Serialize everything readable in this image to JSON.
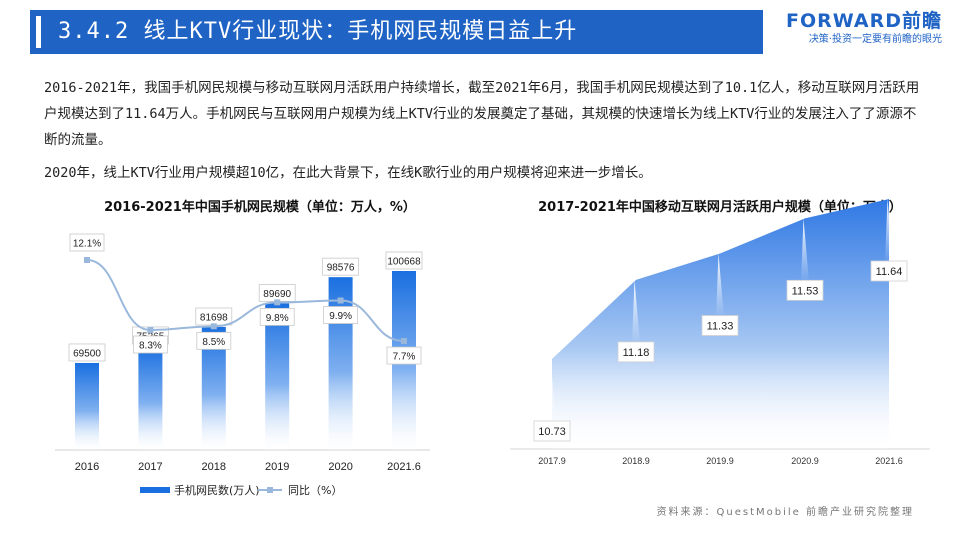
{
  "header": {
    "title": "3.4.2 线上KTV行业现状：手机网民规模日益上升",
    "brand_name": "FORWARD前瞻",
    "brand_slogan": "决策·投资一定要有前瞻的眼光"
  },
  "paragraphs": [
    "2016-2021年，我国手机网民规模与移动互联网月活跃用户持续增长，截至2021年6月，我国手机网民规模达到了10.1亿人，移动互联网月活跃用户规模达到了11.64万人。手机网民与互联网用户规模为线上KTV行业的发展奠定了基础，其规模的快速增长为线上KTV行业的发展注入了了源源不断的流量。",
    "2020年，线上KTV行业用户规模超10亿，在此大背景下，在线K歌行业的用户规模将迎来进一步增长。"
  ],
  "source": "资料来源：QuestMobile 前瞻产业研究院整理",
  "colors": {
    "primary": "#1f63c5",
    "bar_top": "#1a6fe0",
    "line": "#9ab8dc",
    "area": "#2f78e4"
  },
  "chart_data": [
    {
      "type": "bar",
      "title": "2016-2021年中国手机网民规模（单位：万人，%）",
      "categories": [
        "2016",
        "2017",
        "2018",
        "2019",
        "2020",
        "2021.6"
      ],
      "series": [
        {
          "name": "手机网民数(万人)",
          "type": "bar",
          "values": [
            69500,
            75265,
            81698,
            89690,
            98576,
            100668
          ]
        },
        {
          "name": "同比（%）",
          "type": "line",
          "values": [
            12.1,
            8.3,
            8.5,
            9.8,
            9.9,
            7.7
          ],
          "labels": [
            "12.1%",
            "8.3%",
            "8.5%",
            "9.8%",
            "9.9%",
            "7.7%"
          ]
        }
      ],
      "legend_position": "bottom",
      "grid": false
    },
    {
      "type": "area",
      "title": "2017-2021年中国移动互联网月活跃用户规模（单位：万人）",
      "categories": [
        "2017.9",
        "2018.9",
        "2019.9",
        "2020.9",
        "2021.6"
      ],
      "values": [
        10.73,
        11.18,
        11.33,
        11.53,
        11.64
      ],
      "grid": false
    }
  ]
}
